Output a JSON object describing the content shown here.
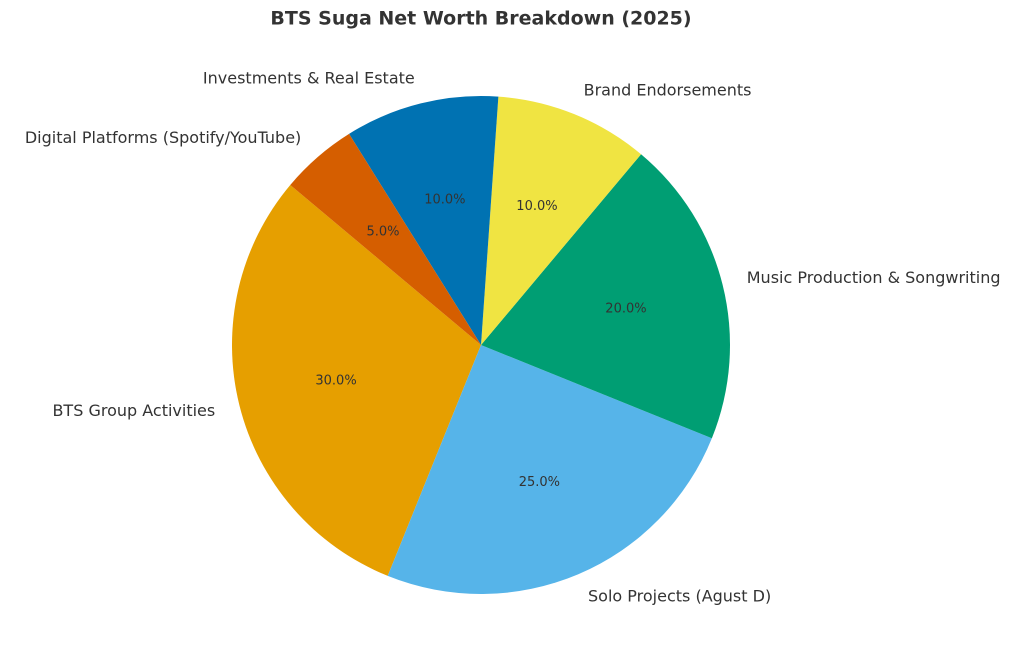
{
  "chart_data": {
    "type": "pie",
    "title": "BTS Suga Net Worth Breakdown (2025)",
    "categories": [
      "BTS Group Activities",
      "Solo Projects (Agust D)",
      "Music Production & Songwriting",
      "Brand Endorsements",
      "Investments & Real Estate",
      "Digital Platforms (Spotify/YouTube)"
    ],
    "values": [
      30,
      25,
      20,
      10,
      10,
      5
    ],
    "value_labels": [
      "30.0%",
      "25.0%",
      "20.0%",
      "10.0%",
      "10.0%",
      "5.0%"
    ],
    "colors": [
      "#E69F00",
      "#56B4E9",
      "#009E73",
      "#F0E442",
      "#0072B2",
      "#D55E00"
    ],
    "startangle": 140,
    "counterclock": true
  }
}
